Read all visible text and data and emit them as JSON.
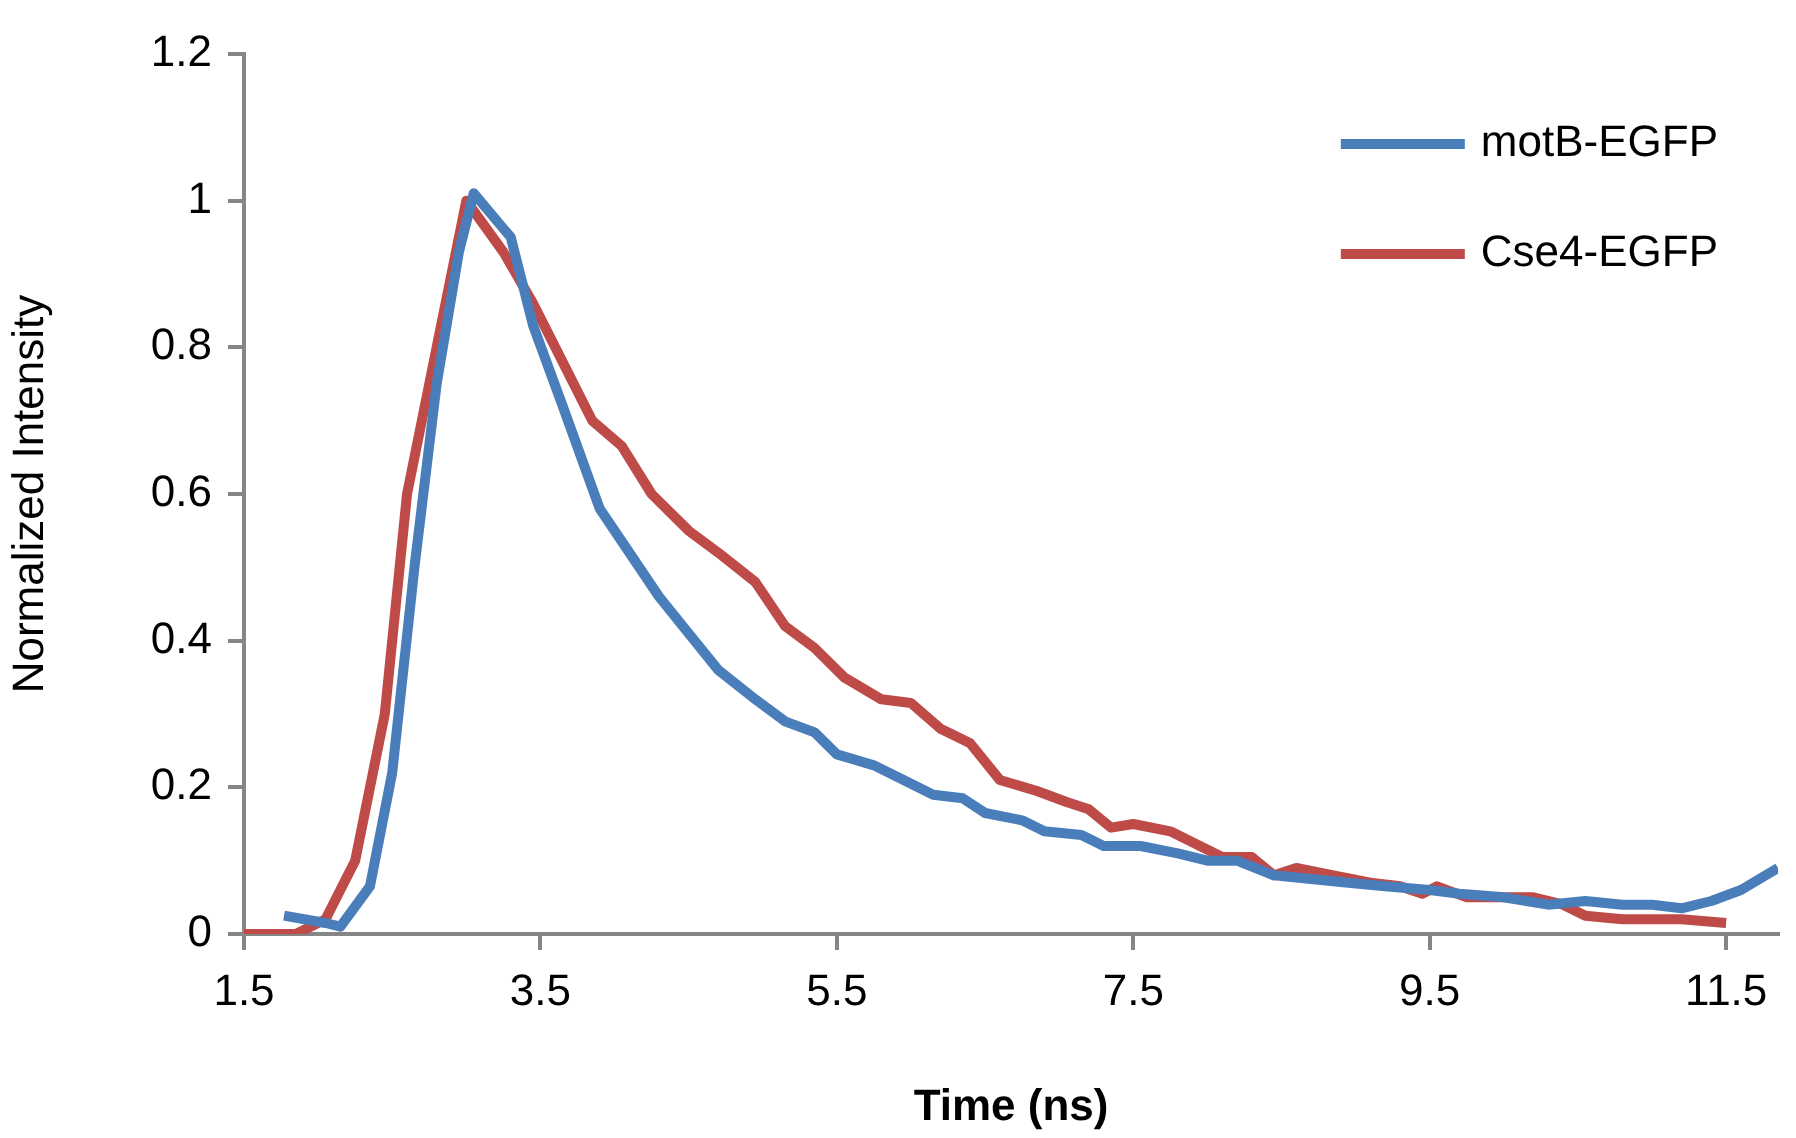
{
  "chart_data": {
    "type": "line",
    "xlabel": "Time (ns)",
    "ylabel": "Normalized Intensity",
    "xlim": [
      1.5,
      11.85
    ],
    "xticks": [
      1.5,
      3.5,
      5.5,
      7.5,
      9.5,
      11.5
    ],
    "ylim": [
      0,
      1.2
    ],
    "yticks": [
      0,
      0.2,
      0.4,
      0.6,
      0.8,
      1,
      1.2
    ],
    "grid": false,
    "legend": "top right",
    "marker": "none",
    "line_style": "solid",
    "series": [
      {
        "name": "motB-EGFP",
        "color": "#4a7ebb",
        "x": [
          1.77,
          2.05,
          2.15,
          2.35,
          2.5,
          2.65,
          2.8,
          2.95,
          3.05,
          3.3,
          3.45,
          3.65,
          3.9,
          4.1,
          4.3,
          4.5,
          4.7,
          4.95,
          5.15,
          5.35,
          5.5,
          5.75,
          5.95,
          6.15,
          6.35,
          6.5,
          6.75,
          6.9,
          7.15,
          7.3,
          7.55,
          7.8,
          8.0,
          8.2,
          8.45,
          8.7,
          8.95,
          9.2,
          9.5,
          9.7,
          10.0,
          10.3,
          10.55,
          10.8,
          11.0,
          11.2,
          11.4,
          11.6,
          11.85
        ],
        "values": [
          0.025,
          0.015,
          0.01,
          0.065,
          0.22,
          0.5,
          0.75,
          0.93,
          1.01,
          0.95,
          0.83,
          0.72,
          0.58,
          0.52,
          0.46,
          0.41,
          0.36,
          0.32,
          0.29,
          0.275,
          0.245,
          0.23,
          0.21,
          0.19,
          0.185,
          0.165,
          0.155,
          0.14,
          0.135,
          0.12,
          0.12,
          0.11,
          0.1,
          0.1,
          0.08,
          0.075,
          0.07,
          0.065,
          0.06,
          0.055,
          0.05,
          0.04,
          0.045,
          0.04,
          0.04,
          0.035,
          0.045,
          0.06,
          0.09
        ]
      },
      {
        "name": "Cse4-EGFP",
        "color": "#be4b48",
        "x": [
          1.5,
          1.85,
          2.05,
          2.25,
          2.45,
          2.6,
          2.8,
          3.0,
          3.25,
          3.45,
          3.65,
          3.85,
          4.05,
          4.25,
          4.5,
          4.7,
          4.95,
          5.15,
          5.35,
          5.55,
          5.8,
          6.0,
          6.2,
          6.4,
          6.6,
          6.85,
          7.05,
          7.2,
          7.35,
          7.5,
          7.75,
          7.95,
          8.1,
          8.3,
          8.45,
          8.6,
          8.85,
          9.1,
          9.3,
          9.45,
          9.55,
          9.75,
          10.0,
          10.2,
          10.4,
          10.55,
          10.8,
          11.2,
          11.5
        ],
        "values": [
          0.0,
          0.0,
          0.02,
          0.1,
          0.3,
          0.6,
          0.8,
          1.0,
          0.93,
          0.86,
          0.78,
          0.7,
          0.665,
          0.6,
          0.55,
          0.52,
          0.48,
          0.42,
          0.39,
          0.35,
          0.32,
          0.315,
          0.28,
          0.26,
          0.21,
          0.195,
          0.18,
          0.17,
          0.145,
          0.15,
          0.14,
          0.12,
          0.105,
          0.105,
          0.08,
          0.09,
          0.08,
          0.07,
          0.065,
          0.055,
          0.065,
          0.05,
          0.05,
          0.05,
          0.04,
          0.025,
          0.02,
          0.02,
          0.015
        ]
      }
    ]
  }
}
